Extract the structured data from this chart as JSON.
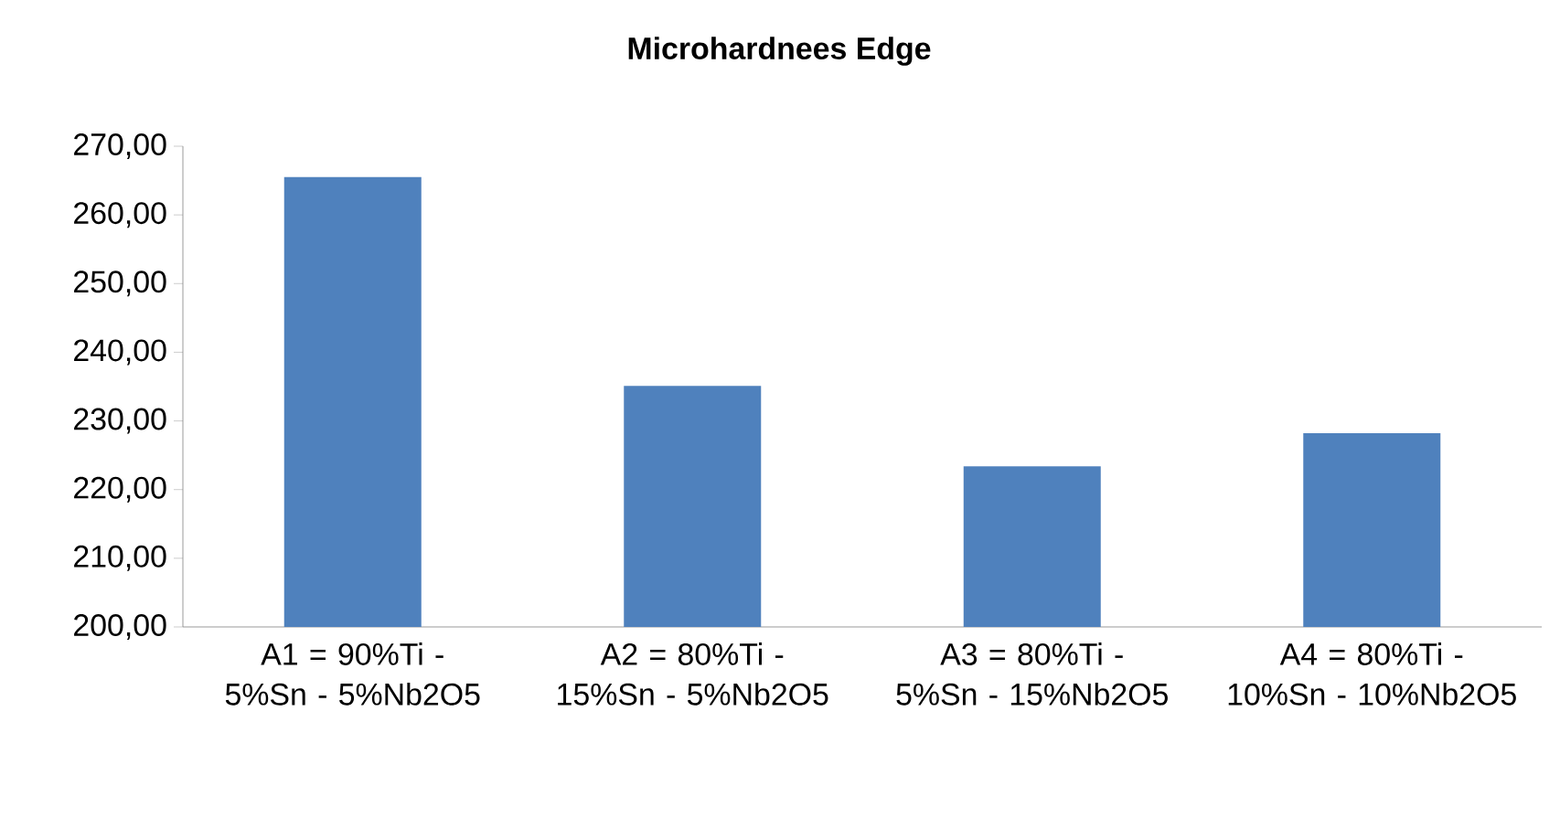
{
  "chart_data": {
    "type": "bar",
    "title": "Microhardnees Edge",
    "categories": [
      "A1 = 90%Ti - 5%Sn - 5%Nb2O5",
      "A2 = 80%Ti - 15%Sn - 5%Nb2O5",
      "A3 = 80%Ti - 5%Sn - 15%Nb2O5",
      "A4 = 80%Ti - 10%Sn - 10%Nb2O5"
    ],
    "values": [
      265.5,
      235.1,
      223.4,
      228.2
    ],
    "color": "#4f81bd",
    "ylim": [
      200,
      270
    ],
    "yticks": [
      {
        "value": 200,
        "label": "200,00"
      },
      {
        "value": 210,
        "label": "210,00"
      },
      {
        "value": 220,
        "label": "220,00"
      },
      {
        "value": 230,
        "label": "230,00"
      },
      {
        "value": 240,
        "label": "240,00"
      },
      {
        "value": 250,
        "label": "250,00"
      },
      {
        "value": 260,
        "label": "260,00"
      },
      {
        "value": 270,
        "label": "270,00"
      }
    ]
  }
}
